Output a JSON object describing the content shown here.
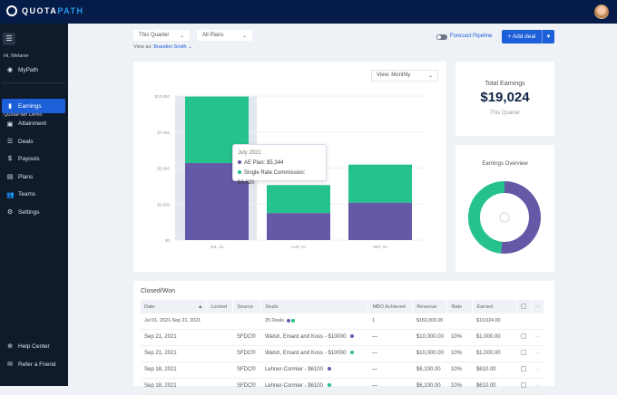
{
  "app": {
    "logo_a": "QUOTA",
    "logo_b": "PATH"
  },
  "sidebar": {
    "greeting": "Hi, Melanie",
    "mypath": "MyPath",
    "section": "QuotaPath Demo",
    "items": [
      {
        "label": "Earnings",
        "icon": "bar-chart-icon",
        "active": true
      },
      {
        "label": "Attainment",
        "icon": "chart-square-icon"
      },
      {
        "label": "Deals",
        "icon": "list-icon"
      },
      {
        "label": "Payouts",
        "icon": "dollar-icon"
      },
      {
        "label": "Plans",
        "icon": "document-icon"
      },
      {
        "label": "Teams",
        "icon": "users-icon"
      },
      {
        "label": "Settings",
        "icon": "gear-icon"
      }
    ],
    "bottom": [
      {
        "label": "Help Center",
        "icon": "lifebuoy-icon"
      },
      {
        "label": "Refer a Friend",
        "icon": "inbox-icon"
      }
    ]
  },
  "filters": {
    "period": "This Quarter",
    "plans": "All Plans",
    "view_as_label": "View as:",
    "view_as_user": "Brandon Smith",
    "forecast": "Forecast Pipeline",
    "add_deal": "+ Add deal"
  },
  "colors": {
    "ae_plan": "#6459a6",
    "single_rate": "#26c28c",
    "primary": "#1c5fd8",
    "navy": "#041c47"
  },
  "chart_data": {
    "type": "bar",
    "stacked": true,
    "categories": [
      "JUL '21",
      "AUG '21",
      "SEP '21"
    ],
    "series": [
      {
        "name": "AE Plan",
        "values": [
          5344,
          1880,
          2600
        ]
      },
      {
        "name": "Single Rate Commission",
        "values": [
          4620,
          1940,
          2640
        ]
      }
    ],
    "yticks": [
      "$0",
      "$2,500",
      "$5,000",
      "$7,500",
      "$10,000"
    ],
    "ylim": [
      0,
      10000
    ],
    "grid": true,
    "view": "View: Monthly",
    "tooltip": {
      "title": "July 2021",
      "line1": "AE Plan: $5,344",
      "line2": "Single Rate Commission: $4,620"
    }
  },
  "total": {
    "title": "Total Earnings",
    "value": "$19,024",
    "period": "This Quarter"
  },
  "overview": {
    "title": "Earnings Overview",
    "ae_plan": 9824,
    "single_rate": 9200
  },
  "table": {
    "title": "Closed/Won",
    "headers": [
      "Date",
      "Locked",
      "Source",
      "Deals",
      "MBO Achieved",
      "Revenue",
      "Rate",
      "Earned"
    ],
    "summary": {
      "date": "Jul 01, 2021-Sep 21, 2021",
      "deals": "25 Deals",
      "mbo": "1",
      "revenue": "$163,000.00",
      "earned": "$19,024.00"
    },
    "rows": [
      {
        "date": "Sep 21, 2021",
        "source": "SFDC®",
        "deal": "Walsh, Emard and Koss - $10000",
        "plan": "ae",
        "mbo": "—",
        "revenue": "$10,000.00",
        "rate": "10%",
        "earned": "$1,000.00"
      },
      {
        "date": "Sep 21, 2021",
        "source": "SFDC®",
        "deal": "Walsh, Emard and Koss - $10000",
        "plan": "sr",
        "mbo": "—",
        "revenue": "$10,000.00",
        "rate": "10%",
        "earned": "$1,000.00"
      },
      {
        "date": "Sep 18, 2021",
        "source": "SFDC®",
        "deal": "Lehner-Cormier - $6100",
        "plan": "ae",
        "mbo": "—",
        "revenue": "$6,100.00",
        "rate": "10%",
        "earned": "$610.00"
      },
      {
        "date": "Sep 18, 2021",
        "source": "SFDC®",
        "deal": "Lehner-Cormier - $6100",
        "plan": "sr",
        "mbo": "—",
        "revenue": "$6,100.00",
        "rate": "10%",
        "earned": "$610.00"
      }
    ]
  }
}
